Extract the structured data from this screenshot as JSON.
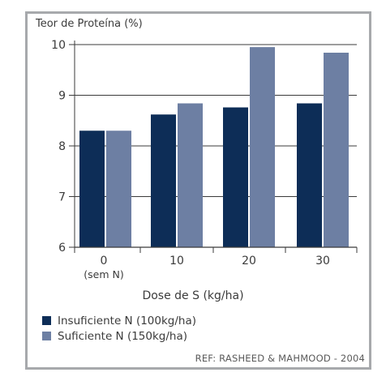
{
  "chart_data": {
    "type": "bar",
    "ylabel": "Teor de Proteína (%)",
    "xlabel": "Dose de S (kg/ha)",
    "categories": [
      "0",
      "10",
      "20",
      "30"
    ],
    "category_sublabels": [
      "(sem N)",
      "",
      "",
      ""
    ],
    "yticks": [
      "6",
      "7",
      "8",
      "9",
      "10"
    ],
    "ylim": [
      6,
      10.3
    ],
    "grid": "horizontal",
    "legend_position": "bottom-left",
    "series": [
      {
        "name": "Insuficiente N (100kg/ha)",
        "values": [
          8.3,
          8.62,
          8.76,
          8.84
        ],
        "color": "#0d2d57"
      },
      {
        "name": "Suficiente N (150kg/ha)",
        "values": [
          8.3,
          8.84,
          9.95,
          9.84
        ],
        "color": "#6d7fa3"
      }
    ],
    "reference": "REF:  RASHEED & MAHMOOD - 2004"
  }
}
